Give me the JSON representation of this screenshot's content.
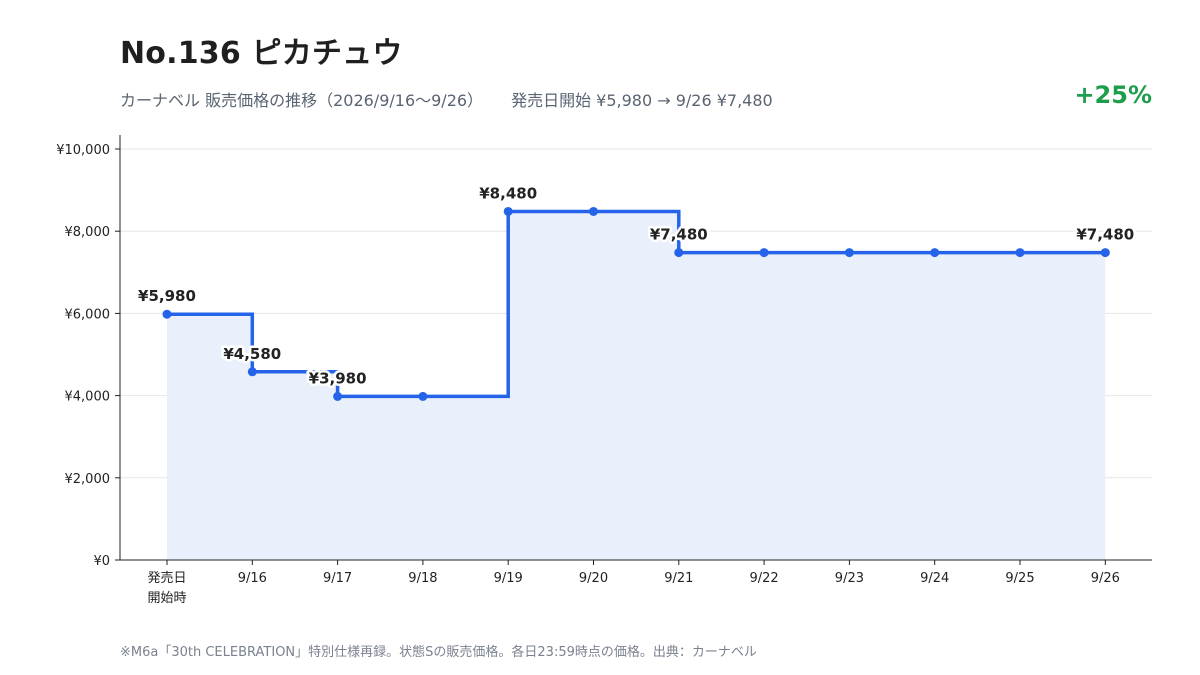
{
  "header": {
    "title": "No.136 ピカチュウ",
    "subtitle_main": "カーナベル 販売価格の推移（2026/9/16〜9/26）",
    "subtitle_detail": "発売日開始 ¥5,980 → 9/26 ¥7,480",
    "change": "+25%"
  },
  "footnote": "※M6a「30th CELEBRATION」特別仕様再録。状態Sの販売価格。各日23:59時点の価格。出典：カーナベル",
  "colors": {
    "line": "#2563eb",
    "fill": "#eaf0fb",
    "change": "#1e9e4a",
    "grid": "#e6e6e6"
  },
  "chart_data": {
    "type": "line",
    "step": true,
    "categories": [
      "発売日\n開始時",
      "9/16",
      "9/17",
      "9/18",
      "9/19",
      "9/20",
      "9/21",
      "9/22",
      "9/23",
      "9/24",
      "9/25",
      "9/26"
    ],
    "values": [
      5980,
      4580,
      3980,
      3980,
      8480,
      8480,
      7480,
      7480,
      7480,
      7480,
      7480,
      7480
    ],
    "data_labels": [
      {
        "index": 0,
        "text": "¥5,980"
      },
      {
        "index": 1,
        "text": "¥4,580"
      },
      {
        "index": 2,
        "text": "¥3,980"
      },
      {
        "index": 4,
        "text": "¥8,480"
      },
      {
        "index": 6,
        "text": "¥7,480"
      },
      {
        "index": 11,
        "text": "¥7,480"
      }
    ],
    "yticks": [
      0,
      2000,
      4000,
      6000,
      8000,
      10000
    ],
    "ytick_labels": [
      "¥0",
      "¥2,000",
      "¥4,000",
      "¥6,000",
      "¥8,000",
      "¥10,000"
    ],
    "ylim": [
      0,
      10000
    ],
    "grid": true,
    "xlabel": "",
    "ylabel": ""
  }
}
